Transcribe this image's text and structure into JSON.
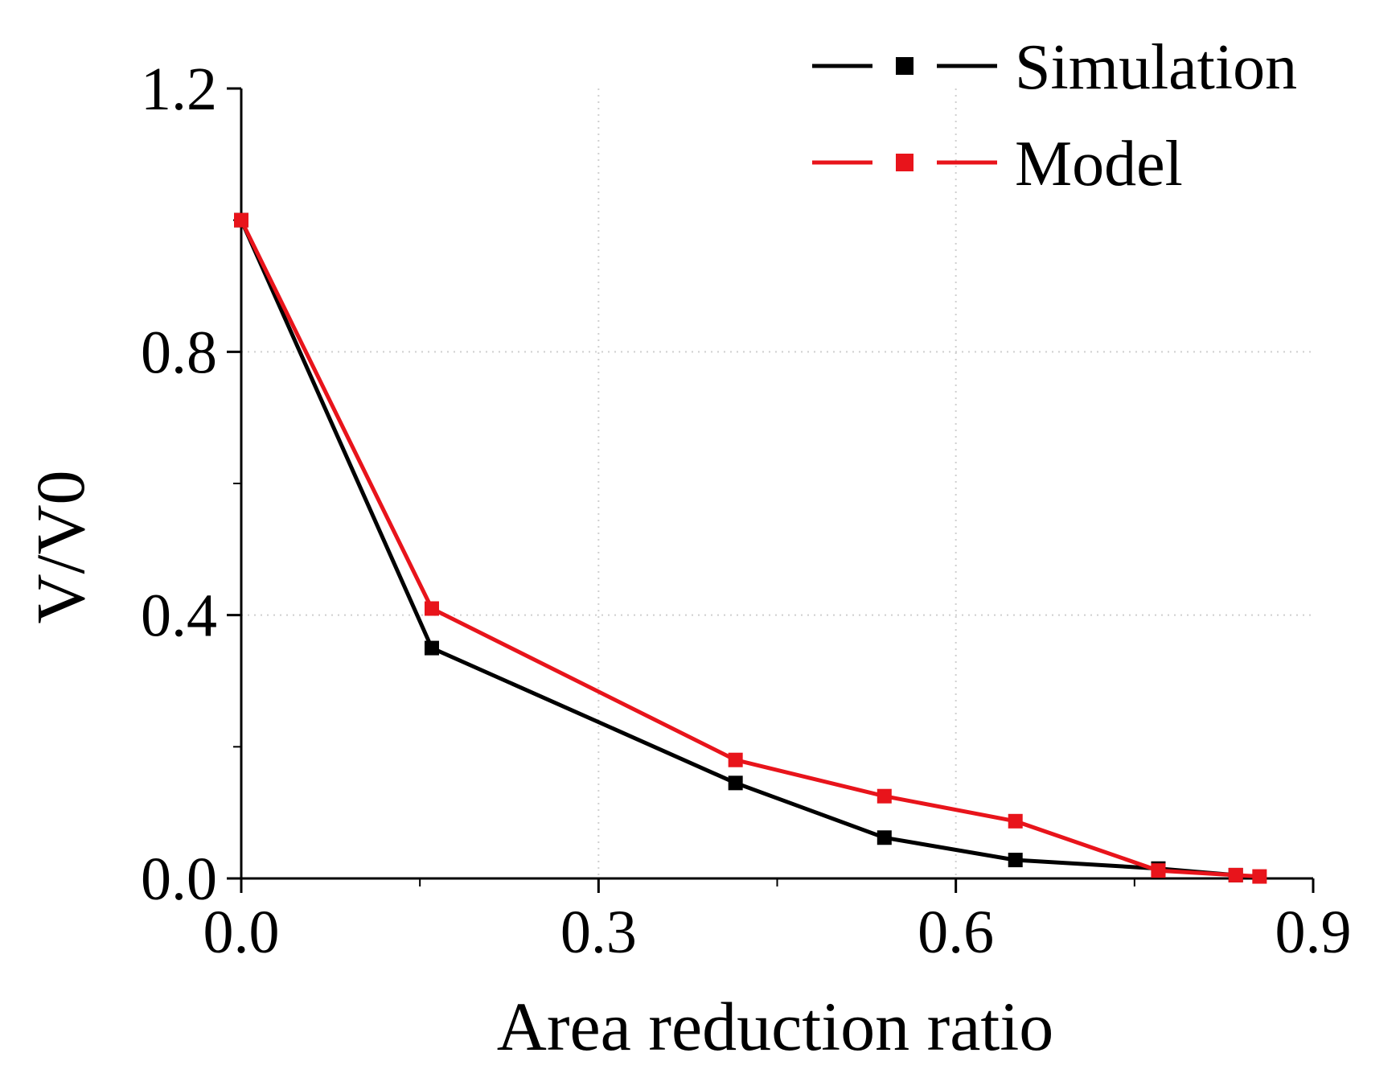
{
  "chart_data": {
    "type": "line",
    "title": "",
    "xlabel": "Area reduction ratio",
    "ylabel": "V/V0",
    "xlim": [
      0,
      0.9
    ],
    "ylim": [
      0,
      1.2
    ],
    "xticks": [
      "0.0",
      "0.3",
      "0.6",
      "0.9"
    ],
    "yticks": [
      "0.0",
      "0.4",
      "0.8",
      "1.2"
    ],
    "grid": "dotted",
    "legend_position": "top-right",
    "series": [
      {
        "name": "Simulation",
        "color": "#000000",
        "x": [
          0.0,
          0.16,
          0.415,
          0.54,
          0.65,
          0.77,
          0.835
        ],
        "y": [
          1.0,
          0.35,
          0.145,
          0.062,
          0.028,
          0.015,
          0.005
        ]
      },
      {
        "name": "Model",
        "color": "#e8141b",
        "x": [
          0.0,
          0.16,
          0.415,
          0.54,
          0.65,
          0.77,
          0.835,
          0.855
        ],
        "y": [
          1.0,
          0.41,
          0.18,
          0.125,
          0.087,
          0.012,
          0.005,
          0.003
        ]
      }
    ]
  }
}
